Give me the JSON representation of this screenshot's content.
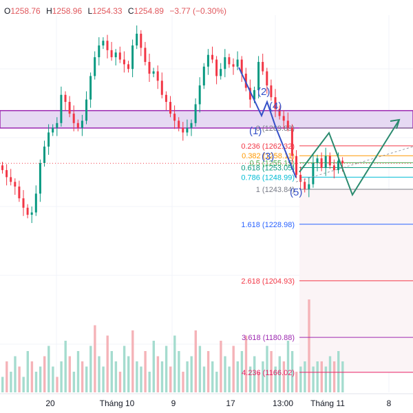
{
  "ohlc": {
    "open_label": "O",
    "open": "1258.76",
    "high_label": "H",
    "high": "1258.96",
    "low_label": "L",
    "low": "1254.33",
    "close_label": "C",
    "close": "1254.89",
    "change": "−3.77 (−0.30%)"
  },
  "chart_data": {
    "type": "candlestick",
    "title": "",
    "x_ticks": [
      "20",
      "Tháng 10",
      "9",
      "17",
      "13:00",
      "Tháng 11",
      "8"
    ],
    "fib_levels": [
      {
        "ratio": "0",
        "price": 1269.89,
        "label": "0 (1269.89)",
        "color": "#787b86"
      },
      {
        "ratio": "0.236",
        "price": 1262.32,
        "label": "0.236 (1262.32)",
        "color": "#f23645"
      },
      {
        "ratio": "0.382",
        "price": 1258.11,
        "label": "0.382 (1258.11)",
        "color": "#ff9800"
      },
      {
        "ratio": "0.5",
        "price": 1255.15,
        "label": "0.5 (1255.15)",
        "color": "#4caf50"
      },
      {
        "ratio": "0.618",
        "price": 1253.05,
        "label": "0.618 (1253.05)",
        "color": "#089981"
      },
      {
        "ratio": "0.786",
        "price": 1248.99,
        "label": "0.786 (1248.99)",
        "color": "#00bcd4"
      },
      {
        "ratio": "1",
        "price": 1243.84,
        "label": "1 (1243.84)",
        "color": "#787b86"
      },
      {
        "ratio": "1.618",
        "price": 1228.98,
        "label": "1.618 (1228.98)",
        "color": "#2962ff"
      },
      {
        "ratio": "2.618",
        "price": 1204.93,
        "label": "2.618 (1204.93)",
        "color": "#f23645"
      },
      {
        "ratio": "3.618",
        "price": 1180.88,
        "label": "3.618 (1180.88)",
        "color": "#9c27b0"
      },
      {
        "ratio": "4.236",
        "price": 1166.02,
        "label": "4.236 (1166.02)",
        "color": "#e91e63"
      }
    ],
    "wave_labels": [
      "(2)",
      "(4)",
      "(1)",
      "(3)",
      "(5)"
    ],
    "close_series": [
      1252,
      1249,
      1247,
      1245,
      1240,
      1236,
      1233,
      1234,
      1242,
      1255,
      1262,
      1268,
      1270,
      1272,
      1284,
      1281,
      1276,
      1272,
      1270,
      1273,
      1282,
      1292,
      1300,
      1305,
      1307,
      1303,
      1300,
      1302,
      1299,
      1297,
      1295,
      1305,
      1310,
      1304,
      1298,
      1293,
      1294,
      1290,
      1284,
      1281,
      1276,
      1273,
      1270,
      1268,
      1270,
      1272,
      1280,
      1288,
      1296,
      1301,
      1299,
      1292,
      1295,
      1300,
      1297,
      1296,
      1299,
      1293,
      1287,
      1282,
      1286,
      1298,
      1294,
      1288,
      1283,
      1278,
      1275,
      1273,
      1270,
      1258,
      1250,
      1247,
      1244,
      1246,
      1255,
      1257,
      1253,
      1258,
      1254,
      1252,
      1256,
      1254.89
    ],
    "volume_series": [
      3,
      6,
      4,
      7,
      5,
      3,
      8,
      6,
      4,
      5,
      7,
      9,
      5,
      3,
      6,
      10,
      7,
      4,
      8,
      6,
      5,
      9,
      13,
      7,
      5,
      11,
      8,
      6,
      4,
      9,
      7,
      12,
      6,
      5,
      8,
      4,
      10,
      7,
      6,
      9,
      5,
      11,
      8,
      4,
      6,
      7,
      12,
      9,
      5,
      8,
      6,
      4,
      10,
      7,
      5,
      9,
      6,
      8,
      11,
      5,
      7,
      4,
      6,
      9,
      8,
      5,
      7,
      6,
      10,
      8,
      4,
      5,
      6,
      18,
      5,
      6,
      6,
      5,
      7,
      6,
      8,
      6
    ],
    "colors": {
      "up": "#089981",
      "down": "#f23645",
      "wave": "#3550c8",
      "projection": "#2a8a6e",
      "zone": "#9c27b0"
    }
  }
}
